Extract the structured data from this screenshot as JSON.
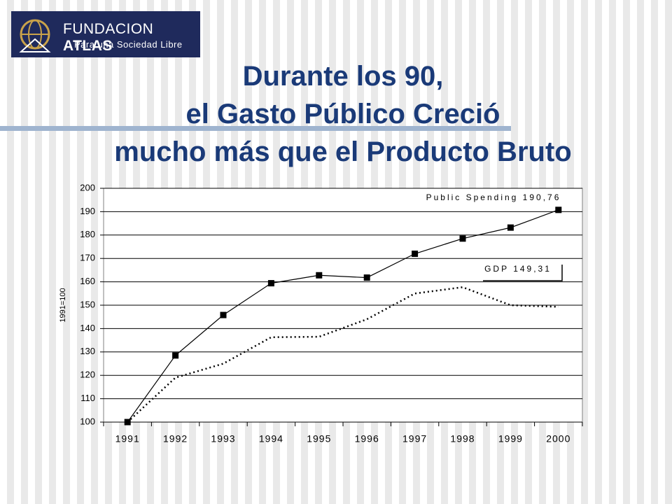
{
  "logo": {
    "name": "FUNDACION",
    "name_bold": "ATLAS",
    "tagline": "Para una Sociedad Libre"
  },
  "chart_data": {
    "type": "line",
    "title": [
      "Durante los 90,",
      "el Gasto Público Creció",
      "mucho más que el Producto Bruto"
    ],
    "y_label": "1991=100",
    "categories": [
      "1991",
      "1992",
      "1993",
      "1994",
      "1995",
      "1996",
      "1997",
      "1998",
      "1999",
      "2000"
    ],
    "series": [
      {
        "color": "#000000",
        "style": "solid",
        "marker": "square",
        "values": [
          100,
          128.5,
          145.8,
          159.4,
          162.8,
          161.8,
          172,
          178.5,
          183.2,
          190.76
        ]
      },
      {
        "color": "#000000",
        "style": "dotted",
        "marker": "none",
        "values": [
          100,
          119,
          125,
          136.3,
          136.5,
          144,
          155,
          157.7,
          150,
          149.31
        ]
      }
    ],
    "annotations": [
      "Public Spending 190,76",
      "GDP 149,31"
    ],
    "ylim": [
      100,
      200
    ],
    "yticks": [
      100,
      110,
      120,
      130,
      140,
      150,
      160,
      170,
      180,
      190,
      200
    ],
    "grid": true
  }
}
